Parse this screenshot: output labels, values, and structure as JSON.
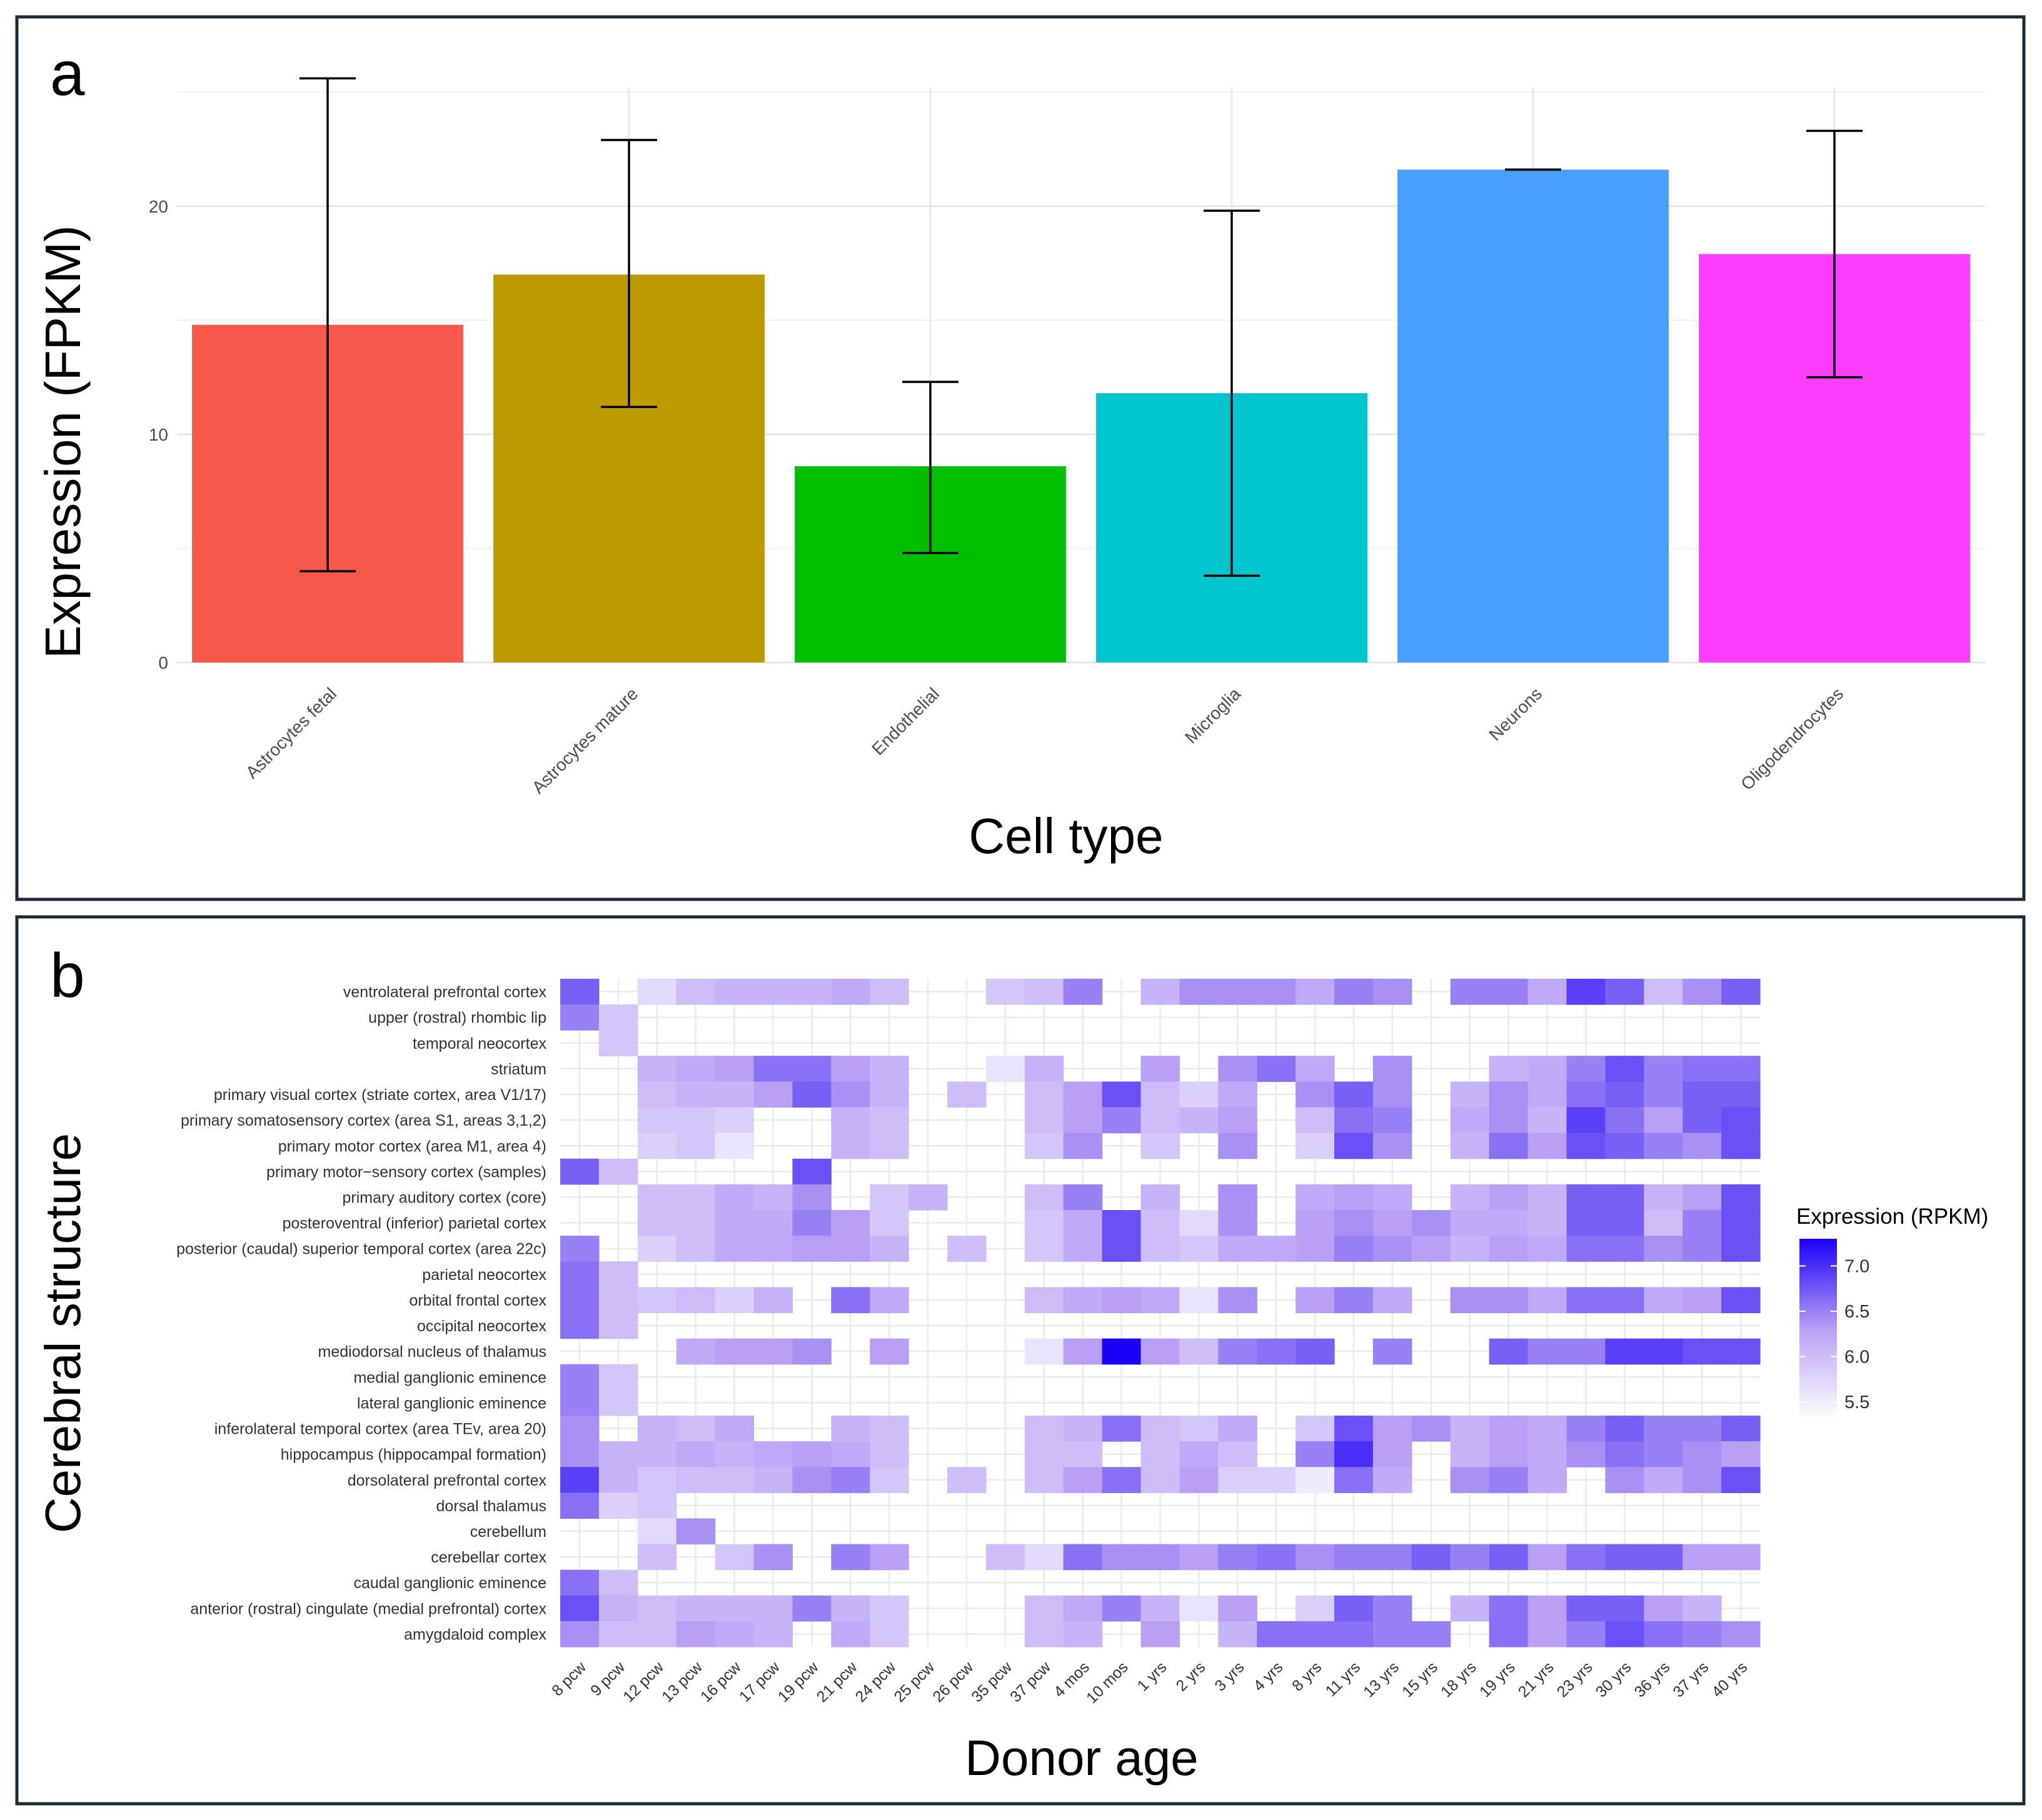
{
  "panel_a": {
    "letter": "a",
    "chart_data": {
      "type": "bar",
      "title": "",
      "xlabel": "Cell type",
      "ylabel": "Expression (FPKM)",
      "ylim": [
        0,
        25.2
      ],
      "yticks": [
        0,
        10,
        20
      ],
      "grid": true,
      "legend": "none",
      "categories": [
        "Astrocytes fetal",
        "Astrocytes mature",
        "Endothelial",
        "Microglia",
        "Neurons",
        "Oligodendrocytes"
      ],
      "values": [
        14.8,
        17.0,
        8.6,
        11.8,
        21.6,
        17.9
      ],
      "error_low": [
        4.0,
        11.2,
        4.8,
        3.8,
        21.6,
        12.5
      ],
      "error_high": [
        25.6,
        22.9,
        12.3,
        19.8,
        21.6,
        23.3
      ],
      "colors": [
        "#f8584a",
        "#bd9a00",
        "#00bf00",
        "#00c5cd",
        "#489ffc",
        "#fc3dfc"
      ]
    }
  },
  "panel_b": {
    "letter": "b",
    "chart_data": {
      "type": "heatmap",
      "title": "",
      "xlabel": "Donor age",
      "ylabel": "Cerebral structure",
      "legend_title": "Expression (RPKM)",
      "legend_position": "right",
      "legend_ticks": [
        5.5,
        6.0,
        6.5,
        7.0
      ],
      "scale": {
        "min": 5.3,
        "max": 7.3,
        "low_color": "#ffffff",
        "mid_color": "#b9a0f5",
        "high_color": "#1a00f6"
      },
      "x": [
        "8 pcw",
        "9 pcw",
        "12 pcw",
        "13 pcw",
        "16 pcw",
        "17 pcw",
        "19 pcw",
        "21 pcw",
        "24 pcw",
        "25 pcw",
        "26 pcw",
        "35 pcw",
        "37 pcw",
        "4 mos",
        "10 mos",
        "1 yrs",
        "2 yrs",
        "3 yrs",
        "4 yrs",
        "8 yrs",
        "11 yrs",
        "13 yrs",
        "15 yrs",
        "18 yrs",
        "19 yrs",
        "21 yrs",
        "23 yrs",
        "30 yrs",
        "36 yrs",
        "37 yrs",
        "40 yrs"
      ],
      "y": [
        "ventrolateral prefrontal cortex",
        "upper (rostral) rhombic lip",
        "temporal neocortex",
        "striatum",
        "primary visual cortex (striate cortex, area V1/17)",
        "primary somatosensory cortex (area S1, areas 3,1,2)",
        "primary motor cortex (area M1, area 4)",
        "primary motor−sensory cortex (samples)",
        "primary auditory cortex (core)",
        "posteroventral (inferior) parietal cortex",
        "posterior (caudal) superior temporal cortex (area 22c)",
        "parietal neocortex",
        "orbital frontal cortex",
        "occipital neocortex",
        "mediodorsal nucleus of thalamus",
        "medial ganglionic eminence",
        "lateral ganglionic eminence",
        "inferolateral temporal cortex (area TEv, area 20)",
        "hippocampus (hippocampal formation)",
        "dorsolateral prefrontal cortex",
        "dorsal thalamus",
        "cerebellum",
        "cerebellar cortex",
        "caudal ganglionic eminence",
        "anterior (rostral) cingulate (medial prefrontal) cortex",
        "amygdaloid complex"
      ],
      "values": [
        [
          6.7,
          null,
          5.7,
          6.0,
          6.1,
          6.1,
          6.1,
          6.2,
          6.0,
          null,
          null,
          5.9,
          6.0,
          6.5,
          null,
          6.1,
          6.4,
          6.4,
          6.4,
          6.2,
          6.5,
          6.4,
          null,
          6.5,
          6.5,
          6.2,
          6.9,
          6.7,
          6.0,
          6.4,
          6.7
        ],
        [
          6.5,
          5.9,
          null,
          null,
          null,
          null,
          null,
          null,
          null,
          null,
          null,
          null,
          null,
          null,
          null,
          null,
          null,
          null,
          null,
          null,
          null,
          null,
          null,
          null,
          null,
          null,
          null,
          null,
          null,
          null,
          null
        ],
        [
          null,
          5.9,
          null,
          null,
          null,
          null,
          null,
          null,
          null,
          null,
          null,
          null,
          null,
          null,
          null,
          null,
          null,
          null,
          null,
          null,
          null,
          null,
          null,
          null,
          null,
          null,
          null,
          null,
          null,
          null,
          null
        ],
        [
          null,
          null,
          6.1,
          6.2,
          6.3,
          6.6,
          6.6,
          6.3,
          6.1,
          null,
          null,
          5.6,
          6.1,
          null,
          null,
          6.3,
          null,
          6.4,
          6.6,
          6.2,
          null,
          6.4,
          null,
          null,
          6.1,
          6.2,
          6.5,
          6.8,
          6.5,
          6.6,
          6.6
        ],
        [
          null,
          null,
          6.0,
          6.1,
          6.1,
          6.3,
          6.7,
          6.4,
          6.1,
          null,
          6.0,
          null,
          6.0,
          6.3,
          6.8,
          6.0,
          5.8,
          6.2,
          null,
          6.4,
          6.7,
          6.4,
          null,
          6.1,
          6.4,
          6.2,
          6.6,
          6.7,
          6.5,
          6.7,
          6.7
        ],
        [
          null,
          null,
          5.9,
          5.9,
          5.8,
          null,
          null,
          6.1,
          6.0,
          null,
          null,
          null,
          6.0,
          6.3,
          6.5,
          6.0,
          6.1,
          6.3,
          null,
          6.0,
          6.6,
          6.5,
          null,
          6.2,
          6.4,
          6.1,
          6.9,
          6.6,
          6.3,
          6.7,
          6.8
        ],
        [
          null,
          null,
          5.8,
          5.9,
          5.6,
          null,
          null,
          6.1,
          6.0,
          null,
          null,
          null,
          5.9,
          6.4,
          null,
          5.9,
          null,
          6.4,
          null,
          5.8,
          6.8,
          6.4,
          null,
          6.1,
          6.6,
          6.3,
          6.8,
          6.7,
          6.5,
          6.4,
          6.8
        ],
        [
          6.7,
          6.0,
          null,
          null,
          null,
          null,
          6.8,
          null,
          null,
          null,
          null,
          null,
          null,
          null,
          null,
          null,
          null,
          null,
          null,
          null,
          null,
          null,
          null,
          null,
          null,
          null,
          null,
          null,
          null,
          null,
          null
        ],
        [
          null,
          null,
          6.0,
          6.0,
          6.2,
          6.1,
          6.4,
          null,
          5.9,
          6.1,
          null,
          null,
          6.0,
          6.5,
          null,
          6.1,
          null,
          6.4,
          null,
          6.2,
          6.3,
          6.2,
          null,
          6.1,
          6.3,
          6.1,
          6.7,
          6.7,
          6.1,
          6.3,
          6.8
        ],
        [
          null,
          null,
          6.0,
          6.0,
          6.2,
          6.2,
          6.5,
          6.3,
          5.9,
          null,
          null,
          null,
          5.9,
          6.2,
          6.8,
          6.0,
          5.7,
          6.4,
          null,
          6.3,
          6.4,
          6.3,
          6.4,
          6.2,
          6.2,
          6.1,
          6.7,
          6.7,
          6.0,
          6.5,
          6.8
        ],
        [
          6.5,
          null,
          5.8,
          6.0,
          6.2,
          6.2,
          6.3,
          6.3,
          6.1,
          null,
          6.0,
          null,
          5.9,
          6.2,
          6.8,
          6.0,
          5.9,
          6.2,
          6.2,
          6.3,
          6.5,
          6.4,
          6.3,
          6.1,
          6.3,
          6.2,
          6.6,
          6.6,
          6.4,
          6.5,
          6.8
        ],
        [
          6.6,
          6.0,
          null,
          null,
          null,
          null,
          null,
          null,
          null,
          null,
          null,
          null,
          null,
          null,
          null,
          null,
          null,
          null,
          null,
          null,
          null,
          null,
          null,
          null,
          null,
          null,
          null,
          null,
          null,
          null,
          null
        ],
        [
          6.6,
          6.0,
          5.9,
          6.0,
          5.8,
          6.1,
          null,
          6.6,
          6.2,
          null,
          null,
          null,
          6.0,
          6.2,
          6.3,
          6.2,
          5.6,
          6.4,
          null,
          6.3,
          6.5,
          6.2,
          null,
          6.4,
          6.4,
          6.2,
          6.6,
          6.6,
          6.2,
          6.3,
          6.8
        ],
        [
          6.6,
          6.0,
          null,
          null,
          null,
          null,
          null,
          null,
          null,
          null,
          null,
          null,
          null,
          null,
          null,
          null,
          null,
          null,
          null,
          null,
          null,
          null,
          null,
          null,
          null,
          null,
          null,
          null,
          null,
          null,
          null
        ],
        [
          null,
          null,
          null,
          6.2,
          6.3,
          6.3,
          6.4,
          null,
          6.3,
          null,
          null,
          null,
          5.6,
          6.3,
          7.3,
          6.3,
          6.0,
          6.5,
          6.6,
          6.7,
          null,
          6.5,
          null,
          null,
          6.7,
          6.5,
          6.5,
          6.9,
          6.9,
          6.8,
          6.8
        ],
        [
          6.5,
          5.9,
          null,
          null,
          null,
          null,
          null,
          null,
          null,
          null,
          null,
          null,
          null,
          null,
          null,
          null,
          null,
          null,
          null,
          null,
          null,
          null,
          null,
          null,
          null,
          null,
          null,
          null,
          null,
          null,
          null
        ],
        [
          6.5,
          5.9,
          null,
          null,
          null,
          null,
          null,
          null,
          null,
          null,
          null,
          null,
          null,
          null,
          null,
          null,
          null,
          null,
          null,
          null,
          null,
          null,
          null,
          null,
          null,
          null,
          null,
          null,
          null,
          null,
          null
        ],
        [
          6.4,
          null,
          6.1,
          6.0,
          6.2,
          null,
          null,
          6.1,
          6.0,
          null,
          null,
          null,
          6.0,
          6.1,
          6.6,
          6.0,
          5.9,
          6.2,
          null,
          5.9,
          6.8,
          6.3,
          6.4,
          6.1,
          6.3,
          6.2,
          6.5,
          6.7,
          6.5,
          6.5,
          6.7
        ],
        [
          6.4,
          6.1,
          6.1,
          6.2,
          6.1,
          6.2,
          6.3,
          6.2,
          6.0,
          null,
          null,
          null,
          6.0,
          6.0,
          null,
          6.0,
          6.2,
          6.0,
          null,
          6.5,
          7.0,
          6.3,
          null,
          6.1,
          6.3,
          6.2,
          6.4,
          6.6,
          6.5,
          6.4,
          6.3
        ],
        [
          6.9,
          6.1,
          5.9,
          6.0,
          6.0,
          6.1,
          6.4,
          6.5,
          5.9,
          null,
          6.0,
          null,
          6.0,
          6.3,
          6.6,
          6.0,
          6.3,
          5.8,
          5.8,
          5.5,
          6.6,
          6.2,
          null,
          6.4,
          6.5,
          6.2,
          null,
          6.4,
          6.2,
          6.4,
          6.8
        ],
        [
          6.6,
          5.8,
          5.9,
          null,
          null,
          null,
          null,
          null,
          null,
          null,
          null,
          null,
          null,
          null,
          null,
          null,
          null,
          null,
          null,
          null,
          null,
          null,
          null,
          null,
          null,
          null,
          null,
          null,
          null,
          null,
          null
        ],
        [
          null,
          null,
          5.7,
          6.4,
          null,
          null,
          null,
          null,
          null,
          null,
          null,
          null,
          null,
          null,
          null,
          null,
          null,
          null,
          null,
          null,
          null,
          null,
          null,
          null,
          null,
          null,
          null,
          null,
          null,
          null,
          null
        ],
        [
          null,
          null,
          6.0,
          null,
          5.9,
          6.4,
          null,
          6.5,
          6.3,
          null,
          null,
          6.0,
          5.7,
          6.6,
          6.4,
          6.4,
          6.3,
          6.5,
          6.6,
          6.4,
          6.5,
          6.5,
          6.7,
          6.5,
          6.7,
          6.3,
          6.6,
          6.7,
          6.7,
          6.3,
          6.3
        ],
        [
          6.6,
          6.0,
          null,
          null,
          null,
          null,
          null,
          null,
          null,
          null,
          null,
          null,
          null,
          null,
          null,
          null,
          null,
          null,
          null,
          null,
          null,
          null,
          null,
          null,
          null,
          null,
          null,
          null,
          null,
          null,
          null
        ],
        [
          6.8,
          6.1,
          6.0,
          6.1,
          6.1,
          6.1,
          6.5,
          6.1,
          5.9,
          null,
          null,
          null,
          6.0,
          6.2,
          6.5,
          6.1,
          5.6,
          6.3,
          null,
          5.8,
          6.7,
          6.5,
          null,
          6.1,
          6.6,
          6.3,
          6.7,
          6.7,
          6.3,
          6.1,
          null
        ],
        [
          6.4,
          6.0,
          6.0,
          6.3,
          6.2,
          6.1,
          null,
          6.2,
          5.9,
          null,
          null,
          null,
          6.0,
          6.1,
          null,
          6.3,
          null,
          6.1,
          6.6,
          6.6,
          6.6,
          6.5,
          6.5,
          null,
          6.6,
          6.3,
          6.5,
          6.8,
          6.6,
          6.5,
          6.4
        ]
      ]
    }
  }
}
